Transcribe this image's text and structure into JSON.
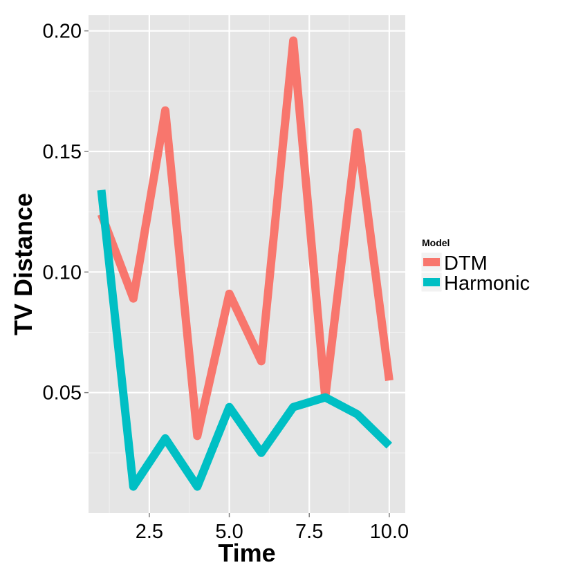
{
  "chart_data": {
    "type": "line",
    "xlabel": "Time",
    "ylabel": "TV Distance",
    "xlim": [
      0.6,
      10.5
    ],
    "ylim": [
      0.0,
      0.2065
    ],
    "x_ticks": [
      2.5,
      5.0,
      7.5,
      10.0
    ],
    "x_tick_labels": [
      "2.5",
      "5.0",
      "7.5",
      "10.0"
    ],
    "y_ticks": [
      0.05,
      0.1,
      0.15,
      0.2
    ],
    "y_tick_labels": [
      "0.05",
      "0.10",
      "0.15",
      "0.20"
    ],
    "grid": true,
    "legend": {
      "title": "Model",
      "position": "right"
    },
    "x": [
      1,
      2,
      3,
      4,
      5,
      6,
      7,
      8,
      9,
      10
    ],
    "series": [
      {
        "name": "DTM",
        "color": "#F8766D",
        "values": [
          0.124,
          0.089,
          0.167,
          0.032,
          0.091,
          0.063,
          0.196,
          0.048,
          0.158,
          0.055
        ]
      },
      {
        "name": "Harmonic",
        "color": "#00BFC4",
        "values": [
          0.134,
          0.011,
          0.031,
          0.011,
          0.044,
          0.025,
          0.044,
          0.048,
          0.041,
          0.028
        ]
      }
    ]
  }
}
